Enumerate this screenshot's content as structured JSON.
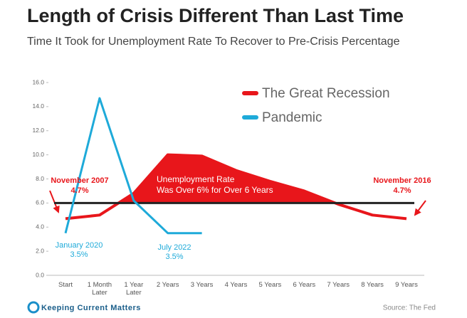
{
  "chart_data": {
    "type": "line",
    "title": "Length of Crisis Different Than Last Time",
    "subtitle": "Time It Took for Unemployment Rate To Recover to Pre-Crisis Percentage",
    "categories": [
      "Start",
      "1 Month Later",
      "1 Year Later",
      "2 Years",
      "3 Years",
      "4 Years",
      "5 Years",
      "6 Years",
      "7 Years",
      "8 Years",
      "9 Years"
    ],
    "series": [
      {
        "name": "The Great Recession",
        "color": "#e8161b",
        "values": [
          4.7,
          5.0,
          6.8,
          10.0,
          9.9,
          8.7,
          7.8,
          7.0,
          5.9,
          5.0,
          4.7
        ]
      },
      {
        "name": "Pandemic",
        "color": "#1eaad9",
        "values": [
          3.5,
          14.7,
          6.2,
          3.5,
          3.5,
          null,
          null,
          null,
          null,
          null,
          null
        ]
      }
    ],
    "ylim": [
      0,
      16
    ],
    "yticks": [
      {
        "value": 0,
        "label": "0.0"
      },
      {
        "value": 2,
        "label": "2.0"
      },
      {
        "value": 4,
        "label": "4.0"
      },
      {
        "value": 6,
        "label": "6.0"
      },
      {
        "value": 8,
        "label": "8.0"
      },
      {
        "value": 10,
        "label": "10.0"
      },
      {
        "value": 12,
        "label": "12.0"
      },
      {
        "value": 14,
        "label": "14.0"
      },
      {
        "value": 16,
        "label": "16.0"
      }
    ],
    "threshold": 6,
    "threshold_color": "#222222",
    "fill_above_threshold": true,
    "annotations": [
      {
        "lines": [
          "November 2007",
          "4.7%"
        ],
        "color": "#e8161b"
      },
      {
        "lines": [
          "January 2020",
          "3.5%"
        ],
        "color": "#1eaad9"
      },
      {
        "lines": [
          "July 2022",
          "3.5%"
        ],
        "color": "#1eaad9"
      },
      {
        "lines": [
          "Unemployment Rate",
          "Was Over 6% for Over 6 Years"
        ],
        "color": "#ffffff"
      },
      {
        "lines": [
          "November 2016",
          "4.7%"
        ],
        "color": "#e8161b"
      }
    ],
    "source": "Source: The Fed",
    "logo": "Keeping Current Matters"
  }
}
